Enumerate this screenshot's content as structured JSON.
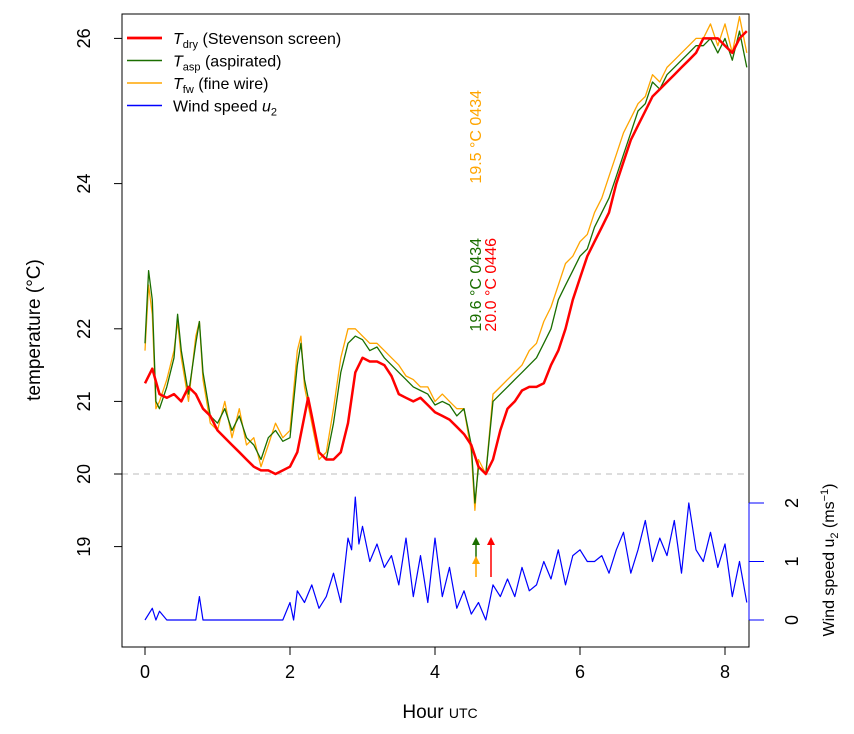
{
  "chart_data": {
    "type": "line",
    "xlabel": "Hour",
    "xlabel_sub": "UTC",
    "ylabel": "temperature (°C)",
    "y2label": "Wind speed u",
    "y2label_sub": "2",
    "y2label_unit": " (ms",
    "y2label_exp": "−1",
    "y2label_close": ")",
    "xlim": [
      -0.3,
      8.35
    ],
    "ylim": [
      18.4,
      26.35
    ],
    "y2lim": [
      0,
      2
    ],
    "xticks": [
      "0",
      "2",
      "4",
      "6",
      "8"
    ],
    "yticks": [
      "19",
      "20",
      "21",
      "22",
      "24",
      "26"
    ],
    "y2ticks": [
      "0",
      "1",
      "2"
    ],
    "reference_line": 20,
    "legend_position": "top-left",
    "series": [
      {
        "name": "T",
        "sub": "dry",
        "label": " (Stevenson screen)",
        "color": "#ff0000",
        "x": [
          0,
          0.1,
          0.2,
          0.3,
          0.4,
          0.5,
          0.6,
          0.7,
          0.8,
          0.9,
          1.0,
          1.1,
          1.2,
          1.3,
          1.4,
          1.5,
          1.6,
          1.7,
          1.8,
          1.9,
          2.0,
          2.1,
          2.2,
          2.25,
          2.3,
          2.4,
          2.5,
          2.6,
          2.7,
          2.8,
          2.9,
          3.0,
          3.1,
          3.2,
          3.3,
          3.4,
          3.5,
          3.6,
          3.7,
          3.8,
          3.9,
          4.0,
          4.1,
          4.2,
          4.3,
          4.4,
          4.5,
          4.6,
          4.7,
          4.8,
          4.9,
          5.0,
          5.1,
          5.2,
          5.3,
          5.4,
          5.5,
          5.6,
          5.7,
          5.8,
          5.9,
          6.0,
          6.1,
          6.2,
          6.3,
          6.4,
          6.5,
          6.6,
          6.7,
          6.8,
          6.9,
          7.0,
          7.1,
          7.2,
          7.3,
          7.4,
          7.5,
          7.6,
          7.7,
          7.8,
          7.9,
          8.0,
          8.1,
          8.2,
          8.3
        ],
        "y": [
          21.25,
          21.45,
          21.1,
          21.05,
          21.1,
          21.0,
          21.2,
          21.1,
          20.9,
          20.8,
          20.6,
          20.5,
          20.4,
          20.3,
          20.2,
          20.1,
          20.05,
          20.05,
          20.0,
          20.05,
          20.1,
          20.3,
          20.8,
          21.05,
          20.8,
          20.3,
          20.2,
          20.2,
          20.3,
          20.7,
          21.4,
          21.6,
          21.55,
          21.55,
          21.5,
          21.35,
          21.1,
          21.05,
          21.0,
          21.05,
          20.95,
          20.85,
          20.8,
          20.75,
          20.65,
          20.55,
          20.4,
          20.1,
          20.0,
          20.2,
          20.6,
          20.9,
          21.0,
          21.15,
          21.2,
          21.2,
          21.25,
          21.5,
          21.7,
          22.0,
          22.4,
          22.7,
          23.0,
          23.2,
          23.4,
          23.6,
          24.0,
          24.3,
          24.6,
          24.8,
          25.0,
          25.2,
          25.3,
          25.4,
          25.5,
          25.6,
          25.7,
          25.8,
          26.0,
          26.0,
          26.0,
          25.9,
          25.8,
          26.0,
          26.1
        ]
      },
      {
        "name": "T",
        "sub": "asp",
        "label": " (aspirated)",
        "color": "#1a6e00",
        "x": [
          0,
          0.05,
          0.1,
          0.15,
          0.2,
          0.3,
          0.4,
          0.45,
          0.5,
          0.6,
          0.7,
          0.75,
          0.8,
          0.9,
          1.0,
          1.1,
          1.2,
          1.3,
          1.4,
          1.5,
          1.6,
          1.7,
          1.8,
          1.9,
          2.0,
          2.1,
          2.15,
          2.2,
          2.3,
          2.4,
          2.5,
          2.6,
          2.7,
          2.8,
          2.9,
          3.0,
          3.1,
          3.2,
          3.3,
          3.4,
          3.5,
          3.6,
          3.7,
          3.8,
          3.9,
          4.0,
          4.1,
          4.2,
          4.3,
          4.4,
          4.5,
          4.55,
          4.6,
          4.7,
          4.8,
          4.9,
          5.0,
          5.1,
          5.2,
          5.3,
          5.4,
          5.5,
          5.6,
          5.7,
          5.8,
          5.9,
          6.0,
          6.1,
          6.2,
          6.3,
          6.4,
          6.5,
          6.6,
          6.7,
          6.8,
          6.9,
          7.0,
          7.1,
          7.2,
          7.3,
          7.4,
          7.5,
          7.6,
          7.7,
          7.8,
          7.9,
          8.0,
          8.1,
          8.2,
          8.3
        ],
        "y": [
          21.8,
          22.8,
          22.4,
          21.0,
          20.9,
          21.2,
          21.6,
          22.2,
          21.7,
          21.1,
          21.8,
          22.1,
          21.4,
          20.8,
          20.7,
          20.9,
          20.6,
          20.8,
          20.5,
          20.4,
          20.2,
          20.5,
          20.6,
          20.45,
          20.5,
          21.5,
          21.8,
          21.3,
          20.8,
          20.3,
          20.2,
          20.7,
          21.4,
          21.8,
          21.9,
          21.85,
          21.7,
          21.75,
          21.6,
          21.5,
          21.4,
          21.3,
          21.2,
          21.15,
          21.1,
          20.95,
          21.0,
          20.95,
          20.8,
          20.9,
          20.4,
          19.6,
          20.1,
          20.0,
          21.0,
          21.1,
          21.2,
          21.3,
          21.4,
          21.5,
          21.6,
          21.8,
          22.0,
          22.4,
          22.6,
          22.8,
          23.0,
          23.1,
          23.4,
          23.6,
          23.8,
          24.1,
          24.4,
          24.7,
          25.0,
          25.1,
          25.4,
          25.3,
          25.5,
          25.6,
          25.7,
          25.8,
          25.9,
          25.9,
          26.0,
          25.8,
          26.0,
          25.7,
          26.1,
          25.6
        ]
      },
      {
        "name": "T",
        "sub": "fw",
        "label": " (fine wire)",
        "color": "#ffa500",
        "x": [
          0,
          0.05,
          0.1,
          0.15,
          0.2,
          0.3,
          0.4,
          0.45,
          0.5,
          0.6,
          0.7,
          0.75,
          0.8,
          0.9,
          1.0,
          1.1,
          1.2,
          1.3,
          1.4,
          1.5,
          1.6,
          1.7,
          1.8,
          1.9,
          2.0,
          2.1,
          2.15,
          2.2,
          2.3,
          2.4,
          2.5,
          2.6,
          2.7,
          2.8,
          2.9,
          3.0,
          3.1,
          3.2,
          3.3,
          3.4,
          3.5,
          3.6,
          3.7,
          3.8,
          3.9,
          4.0,
          4.1,
          4.2,
          4.3,
          4.4,
          4.5,
          4.55,
          4.6,
          4.7,
          4.8,
          4.9,
          5.0,
          5.1,
          5.2,
          5.3,
          5.4,
          5.5,
          5.6,
          5.7,
          5.8,
          5.9,
          6.0,
          6.1,
          6.2,
          6.3,
          6.4,
          6.5,
          6.6,
          6.7,
          6.8,
          6.9,
          7.0,
          7.1,
          7.2,
          7.3,
          7.4,
          7.5,
          7.6,
          7.7,
          7.8,
          7.9,
          8.0,
          8.1,
          8.2,
          8.3
        ],
        "y": [
          21.7,
          22.6,
          22.2,
          20.9,
          21.0,
          21.3,
          21.7,
          22.1,
          21.6,
          21.0,
          21.9,
          22.1,
          21.3,
          20.7,
          20.6,
          21.0,
          20.5,
          20.9,
          20.4,
          20.5,
          20.1,
          20.4,
          20.7,
          20.5,
          20.6,
          21.7,
          21.9,
          21.2,
          20.7,
          20.2,
          20.3,
          20.9,
          21.6,
          22.0,
          22.0,
          21.9,
          21.8,
          21.8,
          21.7,
          21.6,
          21.5,
          21.35,
          21.3,
          21.2,
          21.2,
          21.0,
          21.1,
          21.0,
          20.9,
          20.9,
          20.3,
          19.5,
          20.2,
          20.0,
          21.1,
          21.2,
          21.3,
          21.4,
          21.5,
          21.7,
          21.8,
          22.1,
          22.3,
          22.6,
          22.9,
          23.0,
          23.2,
          23.3,
          23.6,
          23.8,
          24.1,
          24.4,
          24.7,
          24.9,
          25.1,
          25.2,
          25.5,
          25.4,
          25.6,
          25.7,
          25.8,
          25.9,
          26.0,
          26.0,
          26.2,
          25.9,
          26.2,
          25.8,
          26.3,
          25.8
        ]
      },
      {
        "name": "Wind speed ",
        "sub": "2",
        "italic_name": "u",
        "label": "",
        "color": "#0000ff",
        "axis": "right",
        "x": [
          0,
          0.1,
          0.15,
          0.2,
          0.3,
          0.7,
          0.75,
          0.8,
          1.0,
          1.9,
          2.0,
          2.05,
          2.1,
          2.2,
          2.3,
          2.4,
          2.5,
          2.6,
          2.7,
          2.8,
          2.85,
          2.9,
          2.95,
          3.0,
          3.1,
          3.2,
          3.3,
          3.4,
          3.5,
          3.6,
          3.7,
          3.8,
          3.9,
          4.0,
          4.1,
          4.2,
          4.3,
          4.4,
          4.5,
          4.6,
          4.7,
          4.75,
          4.8,
          4.9,
          5.0,
          5.1,
          5.2,
          5.3,
          5.4,
          5.5,
          5.6,
          5.7,
          5.8,
          5.9,
          6.0,
          6.1,
          6.2,
          6.3,
          6.4,
          6.5,
          6.6,
          6.7,
          6.8,
          6.9,
          7.0,
          7.1,
          7.2,
          7.3,
          7.4,
          7.5,
          7.6,
          7.7,
          7.8,
          7.9,
          8.0,
          8.1,
          8.2,
          8.3
        ],
        "y": [
          0,
          0.2,
          0,
          0.15,
          0,
          0,
          0.4,
          0,
          0,
          0,
          0.3,
          0,
          0.5,
          0.3,
          0.6,
          0.2,
          0.4,
          0.8,
          0.3,
          1.4,
          1.2,
          2.1,
          1.3,
          1.6,
          1.0,
          1.3,
          0.9,
          1.1,
          0.6,
          1.4,
          0.4,
          1.1,
          0.3,
          1.4,
          0.4,
          0.9,
          0.2,
          0.5,
          0.1,
          0.3,
          0,
          0.3,
          0.6,
          0.4,
          0.7,
          0.4,
          0.9,
          0.5,
          0.6,
          1.0,
          0.7,
          1.2,
          0.6,
          1.1,
          1.2,
          1.0,
          1.0,
          1.1,
          0.8,
          1.2,
          1.5,
          0.8,
          1.2,
          1.7,
          1.0,
          1.4,
          1.1,
          1.7,
          0.8,
          2.0,
          1.2,
          1.0,
          1.5,
          0.9,
          1.3,
          0.4,
          1.0,
          0.3
        ]
      }
    ],
    "annotations": [
      {
        "text": "19.5 °C 0434",
        "color": "#ffa500",
        "x": 4.55,
        "value": 19.5
      },
      {
        "text": "19.6 °C 0434",
        "color": "#1a6e00",
        "x": 4.55,
        "value": 19.6
      },
      {
        "text": "20.0 °C 0446",
        "color": "#ff0000",
        "x": 4.75,
        "value": 20.0
      }
    ]
  }
}
